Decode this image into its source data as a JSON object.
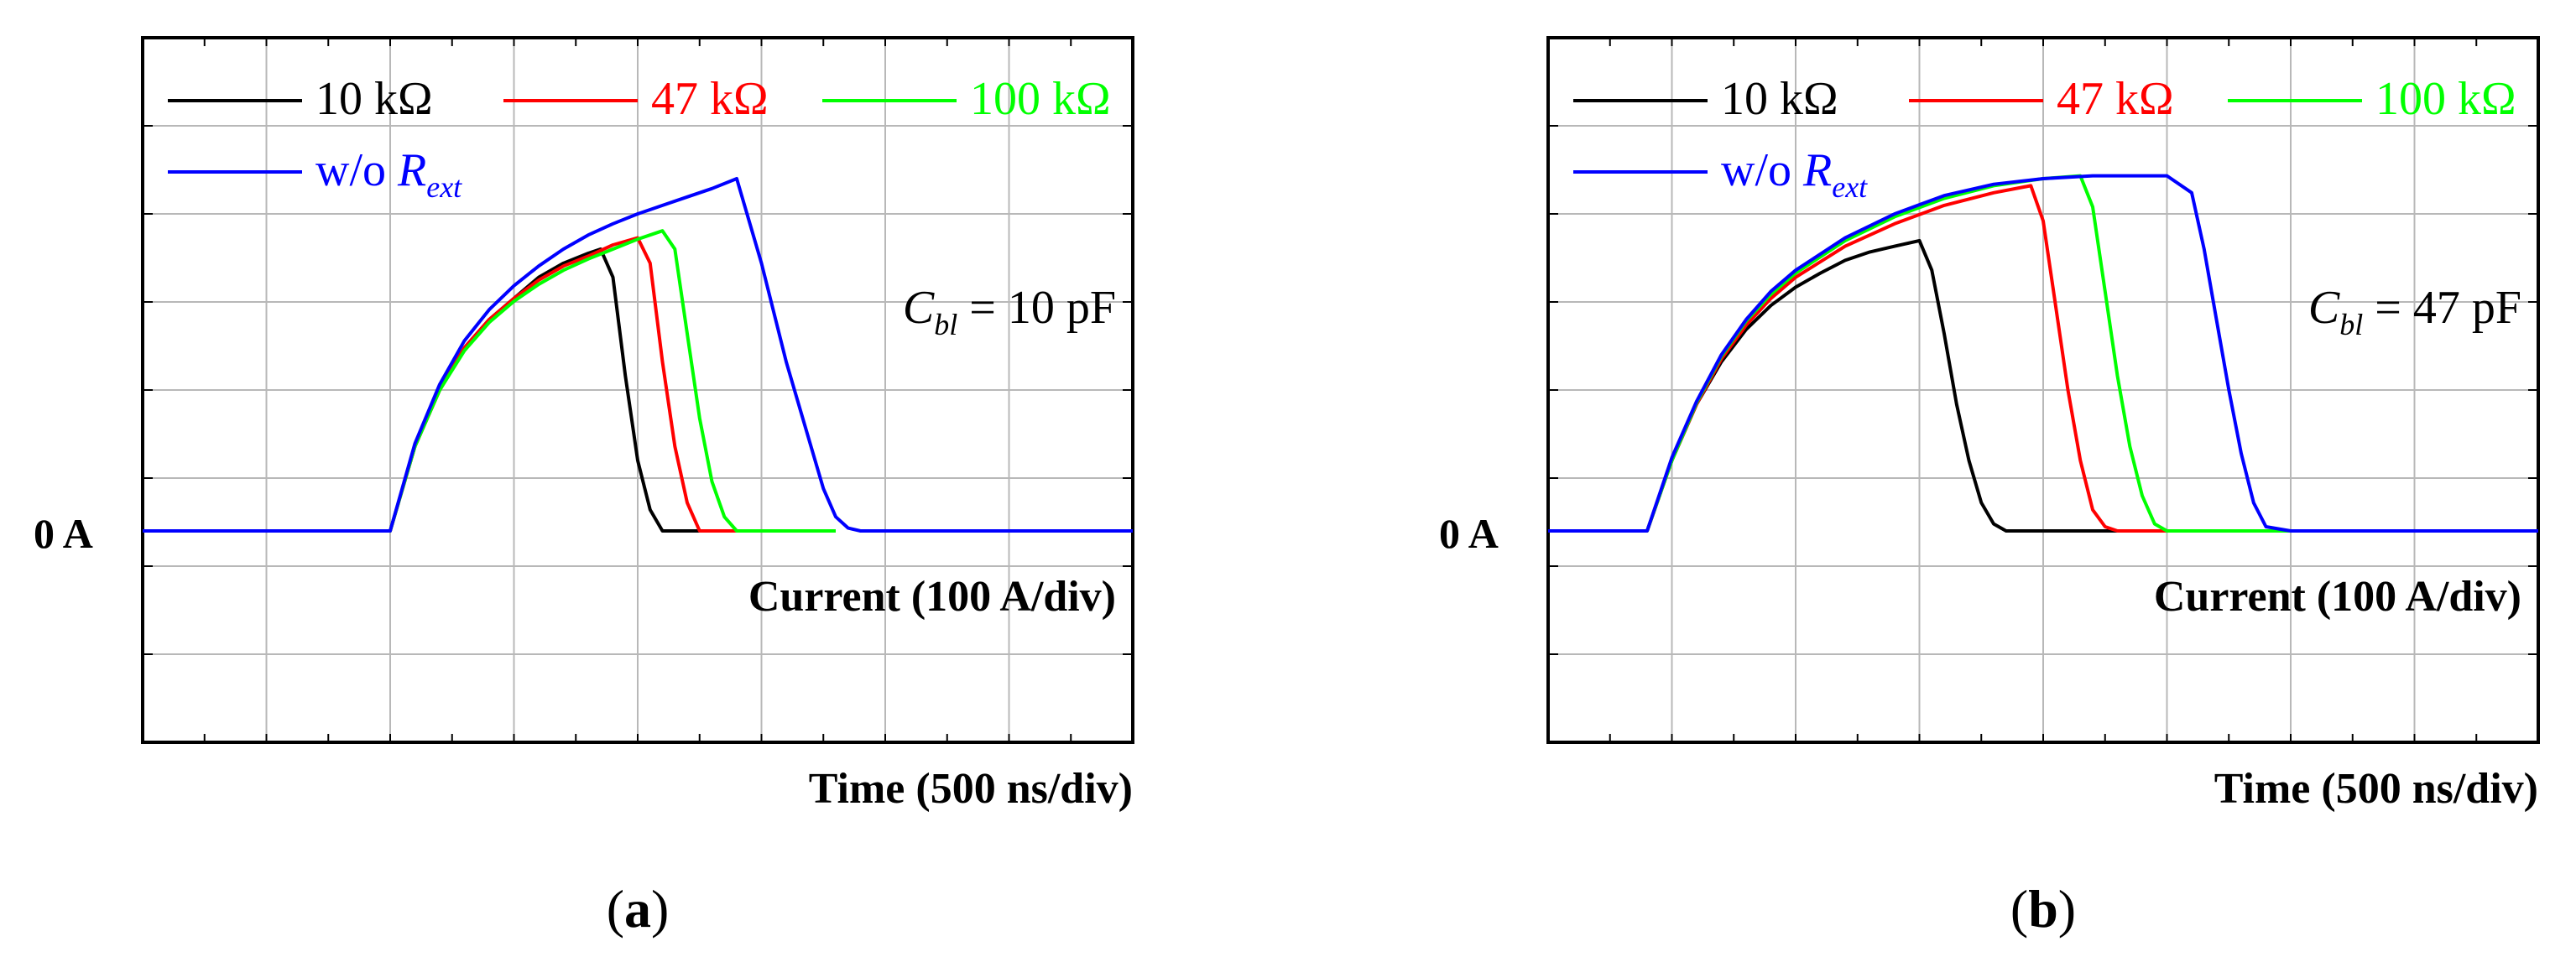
{
  "chart_data": [
    {
      "type": "line",
      "panel_label": "a",
      "xlabel": "Time (500 ns/div)",
      "ylabel": "Current (100 A/div)",
      "zero_label": "0 A",
      "annotation": {
        "symbol": "C",
        "sub": "bl",
        "rest": " = 10 pF"
      },
      "x_unit": "ns",
      "y_unit": "A",
      "xlim": [
        0,
        4000
      ],
      "ylim": [
        -150,
        350
      ],
      "x_divisions": 8,
      "y_divisions": 8,
      "grid": true,
      "legend_position": "top-left",
      "series": [
        {
          "name": "10 kΩ",
          "color": "#000000",
          "x": [
            0,
            1000,
            1100,
            1200,
            1300,
            1400,
            1500,
            1600,
            1700,
            1800,
            1850,
            1900,
            1950,
            2000,
            2050,
            2100,
            2400
          ],
          "y": [
            0,
            0,
            60,
            100,
            130,
            150,
            165,
            180,
            190,
            197,
            200,
            180,
            110,
            50,
            15,
            0,
            0
          ]
        },
        {
          "name": "47 kΩ",
          "color": "#ff0000",
          "x": [
            0,
            1000,
            1100,
            1200,
            1300,
            1400,
            1500,
            1600,
            1700,
            1800,
            1900,
            2000,
            2050,
            2100,
            2150,
            2200,
            2250,
            2700
          ],
          "y": [
            0,
            0,
            60,
            100,
            130,
            150,
            165,
            178,
            188,
            195,
            203,
            208,
            190,
            120,
            60,
            20,
            0,
            0
          ]
        },
        {
          "name": "100 kΩ",
          "color": "#00ff00",
          "x": [
            100,
            1000,
            1100,
            1200,
            1300,
            1400,
            1500,
            1600,
            1700,
            1800,
            1900,
            2000,
            2100,
            2150,
            2200,
            2250,
            2300,
            2350,
            2400,
            2800
          ],
          "y": [
            0,
            0,
            60,
            100,
            128,
            148,
            163,
            175,
            185,
            193,
            200,
            207,
            213,
            200,
            140,
            80,
            35,
            10,
            0,
            0
          ]
        },
        {
          "name": "w/o Rext",
          "color": "#0000ff",
          "x": [
            0,
            1000,
            1100,
            1200,
            1300,
            1400,
            1500,
            1600,
            1700,
            1800,
            1900,
            2000,
            2100,
            2200,
            2300,
            2400,
            2500,
            2600,
            2700,
            2750,
            2800,
            2850,
            2900,
            3000,
            4000
          ],
          "y": [
            0,
            0,
            62,
            104,
            135,
            157,
            174,
            188,
            200,
            210,
            218,
            225,
            231,
            237,
            243,
            250,
            190,
            120,
            60,
            30,
            10,
            2,
            0,
            0,
            0
          ]
        }
      ]
    },
    {
      "type": "line",
      "panel_label": "b",
      "xlabel": "Time (500 ns/div)",
      "ylabel": "Current (100 A/div)",
      "zero_label": "0 A",
      "annotation": {
        "symbol": "C",
        "sub": "bl",
        "rest": " = 47 pF"
      },
      "x_unit": "ns",
      "y_unit": "A",
      "xlim": [
        0,
        4000
      ],
      "ylim": [
        -150,
        350
      ],
      "x_divisions": 8,
      "y_divisions": 8,
      "grid": true,
      "legend_position": "top-left",
      "series": [
        {
          "name": "10 kΩ",
          "color": "#000000",
          "x": [
            0,
            400,
            500,
            600,
            700,
            800,
            900,
            1000,
            1100,
            1200,
            1300,
            1400,
            1500,
            1550,
            1600,
            1650,
            1700,
            1750,
            1800,
            1850,
            2600
          ],
          "y": [
            0,
            0,
            50,
            90,
            120,
            143,
            160,
            173,
            183,
            192,
            198,
            202,
            206,
            185,
            140,
            90,
            50,
            20,
            5,
            0,
            0
          ]
        },
        {
          "name": "47 kΩ",
          "color": "#ff0000",
          "x": [
            0,
            400,
            500,
            600,
            700,
            800,
            900,
            1000,
            1200,
            1400,
            1600,
            1800,
            1950,
            2000,
            2050,
            2100,
            2150,
            2200,
            2250,
            2300,
            2400,
            3000
          ],
          "y": [
            0,
            0,
            50,
            90,
            122,
            146,
            165,
            180,
            202,
            218,
            231,
            240,
            245,
            220,
            160,
            100,
            50,
            15,
            3,
            0,
            0,
            0
          ]
        },
        {
          "name": "100 kΩ",
          "color": "#00ff00",
          "x": [
            0,
            400,
            500,
            600,
            700,
            800,
            900,
            1000,
            1200,
            1400,
            1600,
            1800,
            2000,
            2150,
            2200,
            2250,
            2300,
            2350,
            2400,
            2450,
            2500,
            3200
          ],
          "y": [
            0,
            0,
            50,
            91,
            124,
            149,
            168,
            183,
            206,
            223,
            236,
            245,
            250,
            252,
            230,
            170,
            110,
            60,
            25,
            5,
            0,
            0
          ]
        },
        {
          "name": "w/o Rext",
          "color": "#0000ff",
          "x": [
            0,
            400,
            500,
            600,
            700,
            800,
            900,
            1000,
            1200,
            1400,
            1600,
            1800,
            2000,
            2200,
            2400,
            2500,
            2600,
            2650,
            2700,
            2750,
            2800,
            2850,
            2900,
            3000,
            4000
          ],
          "y": [
            0,
            0,
            52,
            92,
            125,
            150,
            170,
            185,
            208,
            225,
            238,
            246,
            250,
            252,
            252,
            252,
            240,
            200,
            150,
            100,
            55,
            20,
            3,
            0,
            0
          ]
        }
      ]
    }
  ]
}
